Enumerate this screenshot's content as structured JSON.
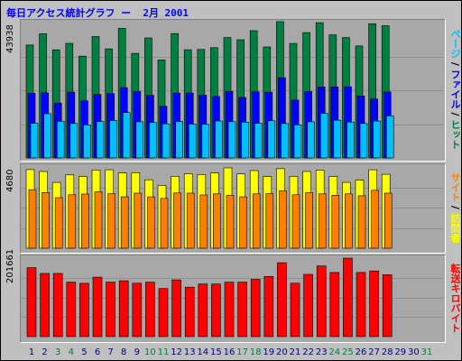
{
  "title": "毎日アクセス統計グラフ ー  2月 2001",
  "colors": {
    "page": "#008040",
    "file": "#0000ff",
    "hit": "#00c0ff",
    "visit": "#ffff00",
    "site": "#ff8000",
    "kbytes": "#ff0000",
    "weekday_tick": "#000080",
    "weekend_tick": "#008040"
  },
  "legend": {
    "hits_panel": [
      {
        "text": "ページ",
        "color": "#00c0ff"
      },
      {
        "text": " / ",
        "color": "#000000"
      },
      {
        "text": "ファイル",
        "color": "#0000ff"
      },
      {
        "text": " / ",
        "color": "#000000"
      },
      {
        "text": "ヒット",
        "color": "#008040"
      }
    ],
    "visits_panel": [
      {
        "text": "サイト",
        "color": "#ff8000"
      },
      {
        "text": " / ",
        "color": "#000000"
      },
      {
        "text": "訪問者",
        "color": "#ffff00"
      }
    ],
    "kbytes_panel": [
      {
        "text": "転送キロバイト",
        "color": "#ff0000"
      }
    ]
  },
  "chart_data": [
    {
      "type": "bar",
      "name": "hits",
      "ymax_label": "43938",
      "ylim": [
        0,
        43938
      ],
      "categories": [
        "1",
        "2",
        "3",
        "4",
        "5",
        "6",
        "7",
        "8",
        "9",
        "10",
        "11",
        "12",
        "13",
        "14",
        "15",
        "16",
        "17",
        "18",
        "19",
        "20",
        "21",
        "22",
        "23",
        "24",
        "25",
        "26",
        "27",
        "28",
        "29",
        "30",
        "31"
      ],
      "weekend_days": [
        "3",
        "4",
        "10",
        "11",
        "17",
        "18",
        "24",
        "25",
        "31"
      ],
      "series": [
        {
          "name": "ヒット",
          "values": [
            36650,
            40290,
            35100,
            37210,
            33050,
            39390,
            35400,
            42050,
            33940,
            38950,
            31820,
            40370,
            35130,
            35210,
            35800,
            39070,
            38360,
            41290,
            36040,
            44260,
            37170,
            40690,
            43910,
            39950,
            39070,
            36360,
            43550,
            42910,
            null,
            null,
            null
          ]
        },
        {
          "name": "ファイル",
          "values": [
            20970,
            21110,
            17800,
            21360,
            18550,
            20590,
            20890,
            22830,
            21550,
            20360,
            16760,
            21050,
            21100,
            20400,
            19970,
            21610,
            19640,
            21480,
            21310,
            26050,
            18790,
            21570,
            23030,
            23050,
            23110,
            20120,
            19120,
            21420,
            null,
            null,
            null
          ]
        },
        {
          "name": "ページ",
          "values": [
            11250,
            14350,
            11880,
            11190,
            10720,
            11830,
            12150,
            14720,
            11740,
            11480,
            11060,
            11820,
            10980,
            10910,
            12010,
            11790,
            11640,
            11270,
            12060,
            11170,
            10740,
            11760,
            14500,
            12250,
            11660,
            11190,
            11970,
            13670,
            null,
            null,
            null
          ]
        }
      ]
    },
    {
      "type": "bar",
      "name": "visits",
      "ymax_label": "4680",
      "ylim": [
        0,
        4680
      ],
      "categories": [
        "1",
        "2",
        "3",
        "4",
        "5",
        "6",
        "7",
        "8",
        "9",
        "10",
        "11",
        "12",
        "13",
        "14",
        "15",
        "16",
        "17",
        "18",
        "19",
        "20",
        "21",
        "22",
        "23",
        "24",
        "25",
        "26",
        "27",
        "28",
        "29",
        "30",
        "31"
      ],
      "series": [
        {
          "name": "訪問者",
          "values": [
            4530,
            4420,
            3790,
            4220,
            4130,
            4510,
            4520,
            4330,
            4350,
            3940,
            3620,
            4140,
            4290,
            4250,
            4330,
            4630,
            4280,
            4470,
            4130,
            4580,
            4140,
            4420,
            4500,
            4130,
            3790,
            3920,
            4520,
            4260,
            null,
            null,
            null
          ]
        },
        {
          "name": "サイト",
          "values": [
            3370,
            3210,
            2910,
            3080,
            3120,
            3250,
            3140,
            2960,
            3170,
            2960,
            2870,
            3180,
            3170,
            3070,
            3130,
            3040,
            2960,
            3130,
            3140,
            3310,
            3080,
            3200,
            3130,
            3050,
            3130,
            3020,
            3340,
            3170,
            null,
            null,
            null
          ]
        }
      ]
    },
    {
      "type": "bar",
      "name": "kbytes",
      "ymax_label": "201661",
      "ylim": [
        0,
        201661
      ],
      "categories": [
        "1",
        "2",
        "3",
        "4",
        "5",
        "6",
        "7",
        "8",
        "9",
        "10",
        "11",
        "12",
        "13",
        "14",
        "15",
        "16",
        "17",
        "18",
        "19",
        "20",
        "21",
        "22",
        "23",
        "24",
        "25",
        "26",
        "27",
        "28",
        "29",
        "30",
        "31"
      ],
      "series": [
        {
          "name": "転送キロバイト",
          "values": [
            177090,
            162280,
            162280,
            139970,
            137100,
            152710,
            139970,
            143410,
            137120,
            139970,
            123530,
            145890,
            127020,
            135230,
            135230,
            139970,
            139970,
            147250,
            154710,
            189840,
            137120,
            160000,
            181470,
            164740,
            201661,
            164740,
            168750,
            159030,
            null,
            null,
            null
          ]
        }
      ]
    }
  ]
}
